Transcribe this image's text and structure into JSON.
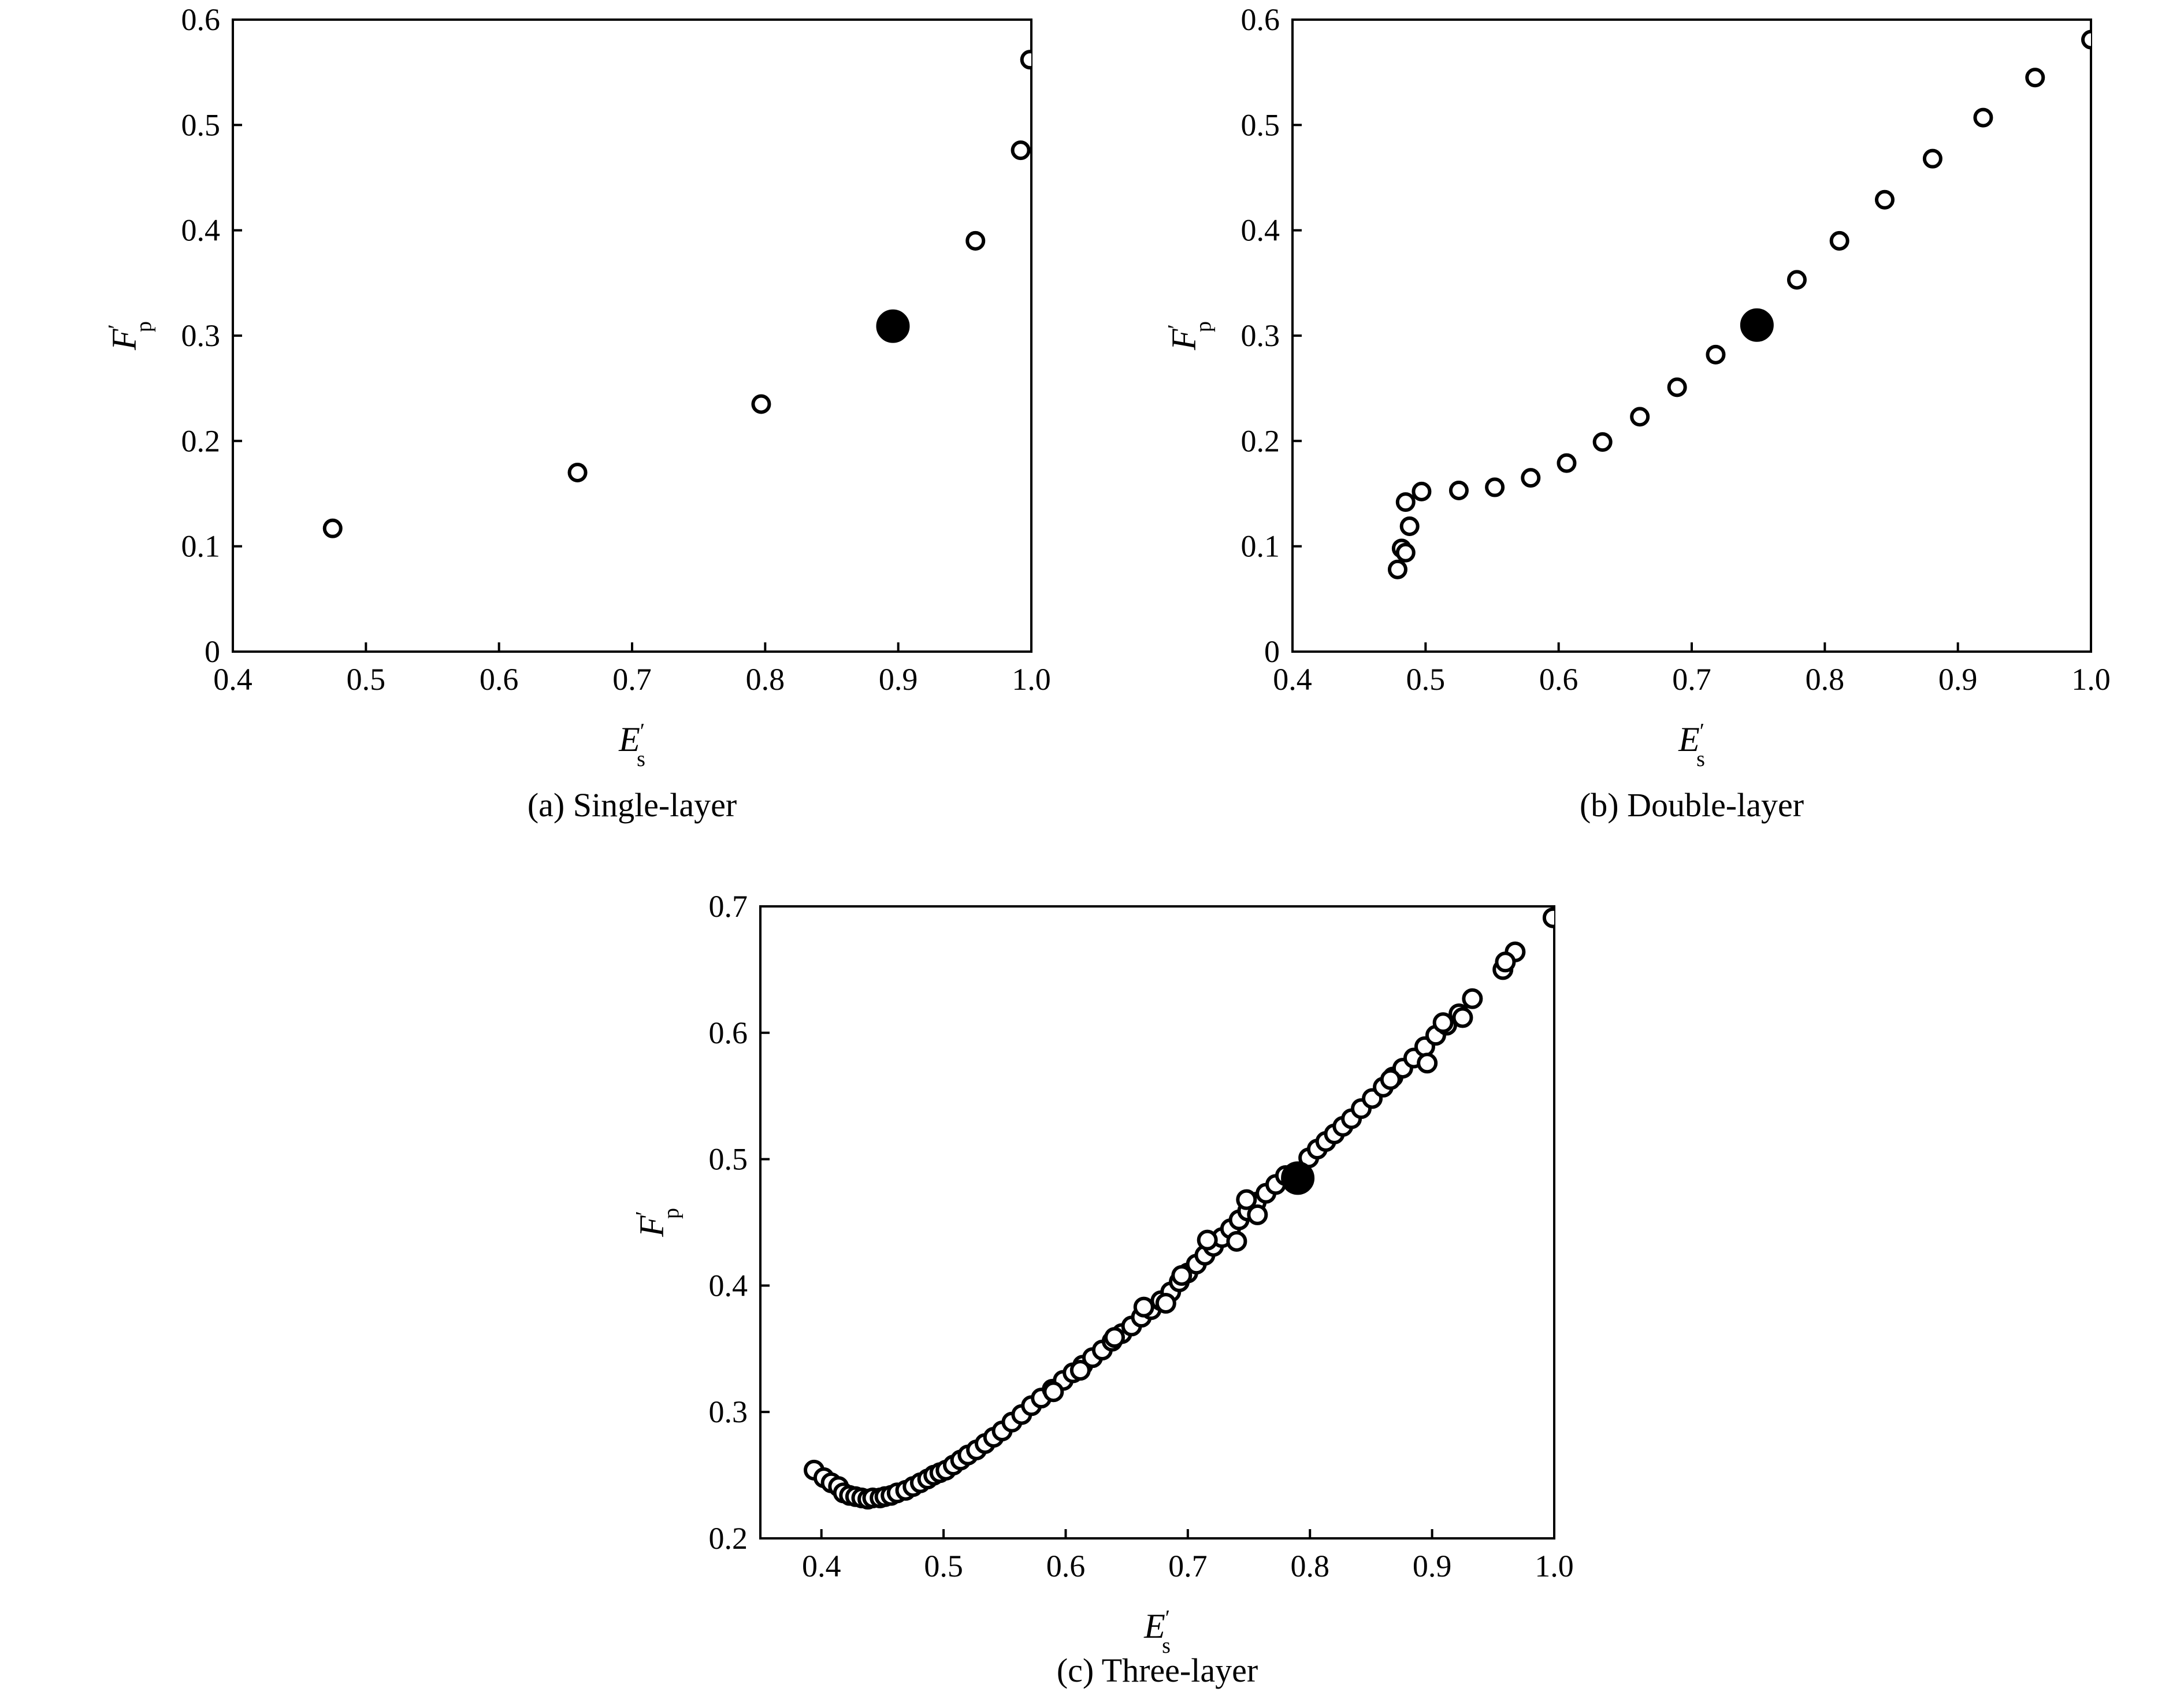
{
  "chart_data": [
    {
      "type": "scatter",
      "caption": "(a) Single-layer",
      "xlabel": "E",
      "xlabel_sub": "s",
      "ylabel": "F",
      "ylabel_sub": "p",
      "prime": "′",
      "xlim": [
        0.4,
        1.0
      ],
      "ylim": [
        0,
        0.6
      ],
      "xticks": [
        0.4,
        0.5,
        0.6,
        0.7,
        0.8,
        0.9,
        1.0
      ],
      "xtick_labels": [
        "0.4",
        "0.5",
        "0.6",
        "0.7",
        "0.8",
        "0.9",
        "1.0"
      ],
      "yticks": [
        0,
        0.1,
        0.2,
        0.3,
        0.4,
        0.5,
        0.6
      ],
      "ytick_labels": [
        "0",
        "0.1",
        "0.2",
        "0.3",
        "0.4",
        "0.5",
        "0.6"
      ],
      "grid": false,
      "points": [
        {
          "x": 0.475,
          "y": 0.117
        },
        {
          "x": 0.659,
          "y": 0.17
        },
        {
          "x": 0.797,
          "y": 0.235
        },
        {
          "x": 0.958,
          "y": 0.39
        },
        {
          "x": 0.992,
          "y": 0.476
        },
        {
          "x": 0.999,
          "y": 0.562
        }
      ],
      "highlight": [
        {
          "x": 0.896,
          "y": 0.309
        }
      ]
    },
    {
      "type": "scatter",
      "caption": "(b) Double-layer",
      "xlabel": "E",
      "xlabel_sub": "s",
      "ylabel": "F",
      "ylabel_sub": "p",
      "prime": "′",
      "xlim": [
        0.4,
        1.0
      ],
      "ylim": [
        0,
        0.6
      ],
      "xticks": [
        0.4,
        0.5,
        0.6,
        0.7,
        0.8,
        0.9,
        1.0
      ],
      "xtick_labels": [
        "0.4",
        "0.5",
        "0.6",
        "0.7",
        "0.8",
        "0.9",
        "1.0"
      ],
      "yticks": [
        0,
        0.1,
        0.2,
        0.3,
        0.4,
        0.5,
        0.6
      ],
      "ytick_labels": [
        "0",
        "0.1",
        "0.2",
        "0.3",
        "0.4",
        "0.5",
        "0.6"
      ],
      "grid": false,
      "points": [
        {
          "x": 0.479,
          "y": 0.078
        },
        {
          "x": 0.482,
          "y": 0.098
        },
        {
          "x": 0.485,
          "y": 0.094
        },
        {
          "x": 0.488,
          "y": 0.119
        },
        {
          "x": 0.485,
          "y": 0.142
        },
        {
          "x": 0.497,
          "y": 0.152
        },
        {
          "x": 0.525,
          "y": 0.153
        },
        {
          "x": 0.552,
          "y": 0.156
        },
        {
          "x": 0.579,
          "y": 0.165
        },
        {
          "x": 0.606,
          "y": 0.179
        },
        {
          "x": 0.633,
          "y": 0.199
        },
        {
          "x": 0.661,
          "y": 0.223
        },
        {
          "x": 0.689,
          "y": 0.251
        },
        {
          "x": 0.718,
          "y": 0.282
        },
        {
          "x": 0.779,
          "y": 0.353
        },
        {
          "x": 0.811,
          "y": 0.39
        },
        {
          "x": 0.845,
          "y": 0.429
        },
        {
          "x": 0.881,
          "y": 0.468
        },
        {
          "x": 0.919,
          "y": 0.507
        },
        {
          "x": 0.958,
          "y": 0.545
        },
        {
          "x": 1.0,
          "y": 0.581
        }
      ],
      "highlight": [
        {
          "x": 0.749,
          "y": 0.31
        }
      ]
    },
    {
      "type": "scatter",
      "caption": "(c) Three-layer",
      "xlabel": "E",
      "xlabel_sub": "s",
      "ylabel": "F",
      "ylabel_sub": "p",
      "prime": "′",
      "xlim": [
        0.35,
        1.0
      ],
      "ylim": [
        0.2,
        0.7
      ],
      "xticks": [
        0.4,
        0.5,
        0.6,
        0.7,
        0.8,
        0.9,
        1.0
      ],
      "xtick_labels": [
        "0.4",
        "0.5",
        "0.6",
        "0.7",
        "0.8",
        "0.9",
        "1.0"
      ],
      "yticks": [
        0.2,
        0.3,
        0.4,
        0.5,
        0.6,
        0.7
      ],
      "ytick_labels": [
        "0.2",
        "0.3",
        "0.4",
        "0.5",
        "0.6",
        "0.7"
      ],
      "grid": false,
      "points": [
        {
          "x": 0.394,
          "y": 0.254
        },
        {
          "x": 0.402,
          "y": 0.248
        },
        {
          "x": 0.408,
          "y": 0.244
        },
        {
          "x": 0.414,
          "y": 0.241
        },
        {
          "x": 0.418,
          "y": 0.236
        },
        {
          "x": 0.423,
          "y": 0.234
        },
        {
          "x": 0.428,
          "y": 0.233
        },
        {
          "x": 0.433,
          "y": 0.232
        },
        {
          "x": 0.438,
          "y": 0.231
        },
        {
          "x": 0.442,
          "y": 0.232
        },
        {
          "x": 0.448,
          "y": 0.232
        },
        {
          "x": 0.452,
          "y": 0.233
        },
        {
          "x": 0.457,
          "y": 0.234
        },
        {
          "x": 0.462,
          "y": 0.236
        },
        {
          "x": 0.469,
          "y": 0.238
        },
        {
          "x": 0.475,
          "y": 0.241
        },
        {
          "x": 0.481,
          "y": 0.244
        },
        {
          "x": 0.487,
          "y": 0.247
        },
        {
          "x": 0.492,
          "y": 0.25
        },
        {
          "x": 0.497,
          "y": 0.252
        },
        {
          "x": 0.502,
          "y": 0.254
        },
        {
          "x": 0.508,
          "y": 0.258
        },
        {
          "x": 0.514,
          "y": 0.262
        },
        {
          "x": 0.52,
          "y": 0.266
        },
        {
          "x": 0.527,
          "y": 0.27
        },
        {
          "x": 0.534,
          "y": 0.275
        },
        {
          "x": 0.541,
          "y": 0.28
        },
        {
          "x": 0.548,
          "y": 0.285
        },
        {
          "x": 0.556,
          "y": 0.292
        },
        {
          "x": 0.564,
          "y": 0.298
        },
        {
          "x": 0.572,
          "y": 0.305
        },
        {
          "x": 0.58,
          "y": 0.311
        },
        {
          "x": 0.589,
          "y": 0.318
        },
        {
          "x": 0.598,
          "y": 0.325
        },
        {
          "x": 0.606,
          "y": 0.331
        },
        {
          "x": 0.614,
          "y": 0.337
        },
        {
          "x": 0.622,
          "y": 0.343
        },
        {
          "x": 0.63,
          "y": 0.349
        },
        {
          "x": 0.638,
          "y": 0.356
        },
        {
          "x": 0.646,
          "y": 0.362
        },
        {
          "x": 0.654,
          "y": 0.368
        },
        {
          "x": 0.662,
          "y": 0.375
        },
        {
          "x": 0.67,
          "y": 0.381
        },
        {
          "x": 0.678,
          "y": 0.388
        },
        {
          "x": 0.686,
          "y": 0.395
        },
        {
          "x": 0.693,
          "y": 0.403
        },
        {
          "x": 0.7,
          "y": 0.41
        },
        {
          "x": 0.707,
          "y": 0.417
        },
        {
          "x": 0.714,
          "y": 0.424
        },
        {
          "x": 0.721,
          "y": 0.431
        },
        {
          "x": 0.728,
          "y": 0.438
        },
        {
          "x": 0.735,
          "y": 0.445
        },
        {
          "x": 0.742,
          "y": 0.452
        },
        {
          "x": 0.749,
          "y": 0.459
        },
        {
          "x": 0.756,
          "y": 0.466
        },
        {
          "x": 0.764,
          "y": 0.473
        },
        {
          "x": 0.772,
          "y": 0.48
        },
        {
          "x": 0.78,
          "y": 0.487
        },
        {
          "x": 0.799,
          "y": 0.501
        },
        {
          "x": 0.806,
          "y": 0.508
        },
        {
          "x": 0.813,
          "y": 0.514
        },
        {
          "x": 0.82,
          "y": 0.52
        },
        {
          "x": 0.827,
          "y": 0.526
        },
        {
          "x": 0.834,
          "y": 0.532
        },
        {
          "x": 0.842,
          "y": 0.54
        },
        {
          "x": 0.851,
          "y": 0.548
        },
        {
          "x": 0.86,
          "y": 0.557
        },
        {
          "x": 0.868,
          "y": 0.565
        },
        {
          "x": 0.876,
          "y": 0.572
        },
        {
          "x": 0.885,
          "y": 0.58
        },
        {
          "x": 0.894,
          "y": 0.589
        },
        {
          "x": 0.903,
          "y": 0.598
        },
        {
          "x": 0.912,
          "y": 0.606
        },
        {
          "x": 0.922,
          "y": 0.615
        },
        {
          "x": 0.933,
          "y": 0.627
        },
        {
          "x": 0.958,
          "y": 0.65
        },
        {
          "x": 0.968,
          "y": 0.664
        },
        {
          "x": 0.999,
          "y": 0.691
        },
        {
          "x": 0.716,
          "y": 0.436
        },
        {
          "x": 0.695,
          "y": 0.408
        },
        {
          "x": 0.664,
          "y": 0.383
        },
        {
          "x": 0.74,
          "y": 0.435
        },
        {
          "x": 0.757,
          "y": 0.456
        },
        {
          "x": 0.748,
          "y": 0.468
        },
        {
          "x": 0.866,
          "y": 0.563
        },
        {
          "x": 0.896,
          "y": 0.576
        },
        {
          "x": 0.909,
          "y": 0.608
        },
        {
          "x": 0.925,
          "y": 0.612
        },
        {
          "x": 0.96,
          "y": 0.656
        },
        {
          "x": 0.64,
          "y": 0.359
        },
        {
          "x": 0.612,
          "y": 0.333
        },
        {
          "x": 0.59,
          "y": 0.316
        },
        {
          "x": 0.682,
          "y": 0.386
        }
      ],
      "highlight": [
        {
          "x": 0.79,
          "y": 0.485
        }
      ]
    }
  ]
}
